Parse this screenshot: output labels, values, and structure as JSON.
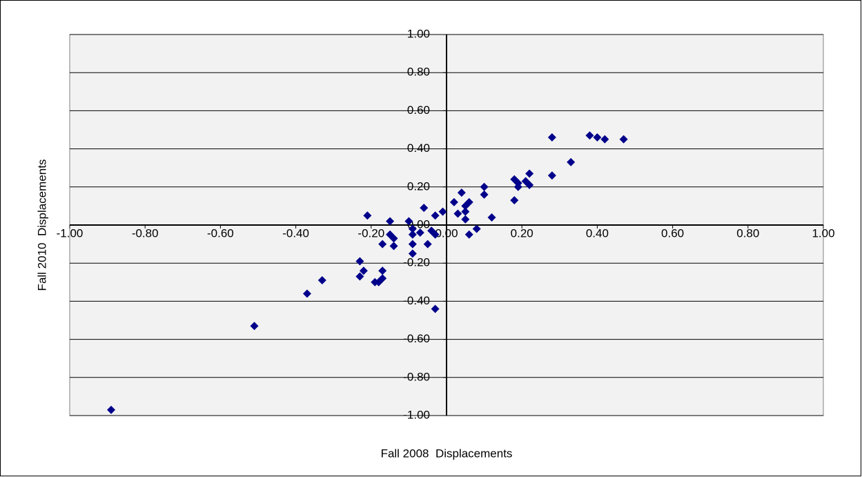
{
  "chart_data": {
    "type": "scatter",
    "x_label": "Fall 2008  Displacements",
    "y_label": "Fall 2010  Displacements",
    "series": [
      {
        "color": "#00008b",
        "x": [
          -0.89,
          -0.51,
          -0.37,
          -0.33,
          -0.21,
          -0.23,
          -0.23,
          -0.22,
          -0.19,
          -0.18,
          -0.17,
          -0.17,
          -0.17,
          -0.15,
          -0.15,
          -0.14,
          -0.14,
          -0.1,
          -0.09,
          -0.09,
          -0.09,
          -0.09,
          -0.07,
          -0.06,
          -0.05,
          -0.04,
          -0.03,
          -0.03,
          -0.03,
          -0.01,
          0.02,
          0.03,
          0.04,
          0.05,
          0.05,
          0.05,
          0.06,
          0.06,
          0.08,
          0.1,
          0.1,
          0.12,
          0.18,
          0.18,
          0.19,
          0.19,
          0.21,
          0.22,
          0.22,
          0.28,
          0.28,
          0.33,
          0.38,
          0.4,
          0.42,
          0.47
        ],
        "y": [
          -0.97,
          -0.53,
          -0.36,
          -0.29,
          0.05,
          -0.19,
          -0.27,
          -0.24,
          -0.3,
          -0.3,
          -0.24,
          -0.28,
          -0.1,
          0.02,
          -0.05,
          -0.07,
          -0.11,
          0.02,
          -0.02,
          -0.1,
          -0.15,
          -0.05,
          -0.04,
          0.09,
          -0.1,
          -0.03,
          -0.05,
          0.05,
          -0.44,
          0.07,
          0.12,
          0.06,
          0.17,
          0.1,
          0.07,
          0.03,
          -0.05,
          0.12,
          -0.02,
          0.2,
          0.16,
          0.04,
          0.24,
          0.13,
          0.2,
          0.22,
          0.23,
          0.27,
          0.21,
          0.26,
          0.46,
          0.33,
          0.47,
          0.46,
          0.45,
          0.45
        ]
      }
    ],
    "xlim": [
      -1,
      1
    ],
    "ylim": [
      -1,
      1
    ],
    "xticks": [
      {
        "value": -1,
        "label": "-1.00"
      },
      {
        "value": -0.8,
        "label": "-0.80"
      },
      {
        "value": -0.6,
        "label": "-0.60"
      },
      {
        "value": -0.4,
        "label": "-0.40"
      },
      {
        "value": -0.2,
        "label": "-0.20"
      },
      {
        "value": 0,
        "label": "0.00"
      },
      {
        "value": 0.2,
        "label": "0.20"
      },
      {
        "value": 0.4,
        "label": "0.40"
      },
      {
        "value": 0.6,
        "label": "0.60"
      },
      {
        "value": 0.8,
        "label": "0.80"
      },
      {
        "value": 1,
        "label": "1.00"
      }
    ],
    "yticks": [
      {
        "value": -1,
        "label": "-1.00"
      },
      {
        "value": -0.8,
        "label": "-0.80"
      },
      {
        "value": -0.6,
        "label": "-0.60"
      },
      {
        "value": -0.4,
        "label": "-0.40"
      },
      {
        "value": -0.2,
        "label": "-0.20"
      },
      {
        "value": 0,
        "label": "0.00"
      },
      {
        "value": 0.2,
        "label": "0.20"
      },
      {
        "value": 0.4,
        "label": "0.40"
      },
      {
        "value": 0.6,
        "label": "0.60"
      },
      {
        "value": 0.8,
        "label": "0.80"
      },
      {
        "value": 1,
        "label": "1.00"
      }
    ],
    "grid": true
  }
}
